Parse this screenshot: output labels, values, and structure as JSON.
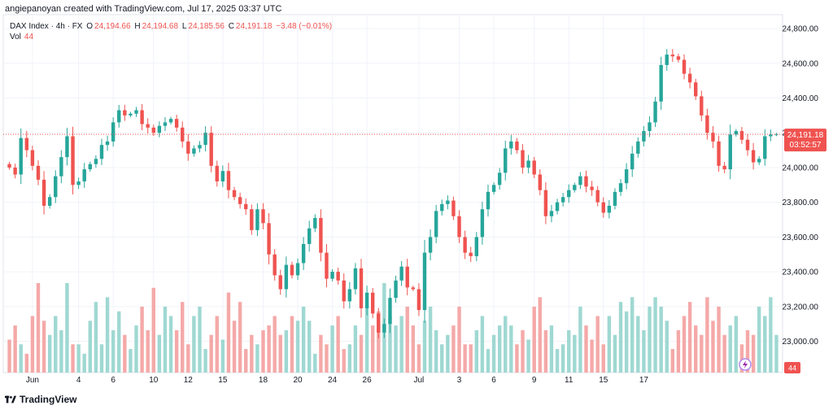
{
  "header": {
    "text": "angiepanoyan created with TradingView.com, Jul 17, 2025 03:37 UTC"
  },
  "legend": {
    "symbol": "DAX Index · 4h · FX",
    "open_label": "O",
    "open": "24,194.66",
    "high_label": "H",
    "high": "24,194.68",
    "low_label": "L",
    "low": "24,185.56",
    "close_label": "C",
    "close": "24,191.18",
    "change": "−3.48 (−0.01%)",
    "vol_label": "Vol",
    "vol_value": "44"
  },
  "price_badge": {
    "price": "24,191.18",
    "countdown": "03:52:57"
  },
  "vol_badge": "44",
  "footer": {
    "brand": "TradingView"
  },
  "colors": {
    "up": "#26a69a",
    "down": "#ef5350",
    "up_vol": "#9fd8d2",
    "down_vol": "#f4a9a8",
    "grid": "#f0f3fa",
    "axis_text": "#131722"
  },
  "chart_data": {
    "type": "candlestick",
    "title": "DAX Index · 4h · FX",
    "ylim": [
      22820,
      24880
    ],
    "y_ticks": [
      23000,
      23200,
      23400,
      23600,
      23800,
      24000,
      24200,
      24400,
      24600,
      24800
    ],
    "y_tick_labels": [
      "23,000.00",
      "23,200.00",
      "23,400.00",
      "23,600.00",
      "23,800.00",
      "24,000.00",
      "24,200.00",
      "24,400.00",
      "24,600.00",
      "24,800.00"
    ],
    "x_tick_labels": [
      "Jun",
      "4",
      "6",
      "10",
      "12",
      "15",
      "18",
      "20",
      "24",
      "26",
      "Jul",
      "3",
      "6",
      "9",
      "11",
      "15",
      "17"
    ],
    "x_tick_index": [
      4,
      12,
      18,
      25,
      31,
      37,
      44,
      50,
      56,
      62,
      71,
      78,
      84,
      91,
      97,
      103,
      110
    ],
    "last_price": 24191.18,
    "closes": [
      24000,
      23960,
      24170,
      24100,
      24010,
      23930,
      23780,
      23830,
      23950,
      24060,
      24180,
      23900,
      23920,
      23990,
      24020,
      24050,
      24130,
      24150,
      24260,
      24330,
      24300,
      24310,
      24330,
      24250,
      24230,
      24200,
      24240,
      24260,
      24280,
      24230,
      24150,
      24080,
      24110,
      24130,
      24200,
      24010,
      23920,
      23980,
      23870,
      23830,
      23790,
      23760,
      23640,
      23760,
      23680,
      23500,
      23380,
      23300,
      23440,
      23380,
      23450,
      23560,
      23650,
      23710,
      23510,
      23360,
      23400,
      23350,
      23230,
      23300,
      23420,
      23190,
      23280,
      23160,
      23050,
      23100,
      23250,
      23350,
      23430,
      23310,
      23300,
      23180,
      23510,
      23600,
      23750,
      23790,
      23810,
      23720,
      23600,
      23510,
      23490,
      23600,
      23760,
      23860,
      23900,
      23970,
      24110,
      24150,
      24100,
      24000,
      24040,
      23960,
      23870,
      23720,
      23750,
      23800,
      23830,
      23870,
      23900,
      23950,
      23890,
      23870,
      23800,
      23740,
      23780,
      23860,
      23910,
      23990,
      24080,
      24150,
      24210,
      24260,
      24380,
      24590,
      24650,
      24640,
      24620,
      24540,
      24490,
      24410,
      24300,
      24200,
      24150,
      24010,
      23990,
      24190,
      24210,
      24160,
      24100,
      24030,
      24050,
      24180,
      24190,
      24191
    ],
    "volumes": [
      70,
      100,
      60,
      40,
      120,
      190,
      110,
      80,
      120,
      90,
      190,
      60,
      60,
      40,
      110,
      150,
      60,
      160,
      90,
      130,
      80,
      50,
      100,
      140,
      90,
      180,
      80,
      140,
      120,
      90,
      150,
      60,
      120,
      140,
      50,
      80,
      120,
      70,
      170,
      110,
      150,
      50,
      80,
      60,
      90,
      100,
      120,
      80,
      90,
      120,
      110,
      140,
      110,
      40,
      80,
      60,
      100,
      120,
      50,
      60,
      100,
      80,
      140,
      100,
      130,
      190,
      120,
      100,
      120,
      140,
      100,
      60,
      110,
      140,
      90,
      60,
      80,
      100,
      140,
      60,
      60,
      90,
      120,
      50,
      80,
      100,
      120,
      100,
      60,
      90,
      70,
      140,
      160,
      90,
      100,
      50,
      60,
      90,
      80,
      140,
      100,
      70,
      120,
      60,
      120,
      80,
      150,
      130,
      160,
      120,
      90,
      140,
      160,
      140,
      110,
      50,
      90,
      120,
      150,
      100,
      80,
      160,
      110,
      140,
      80,
      100,
      120,
      60,
      90,
      80,
      140,
      120,
      160,
      80
    ]
  }
}
